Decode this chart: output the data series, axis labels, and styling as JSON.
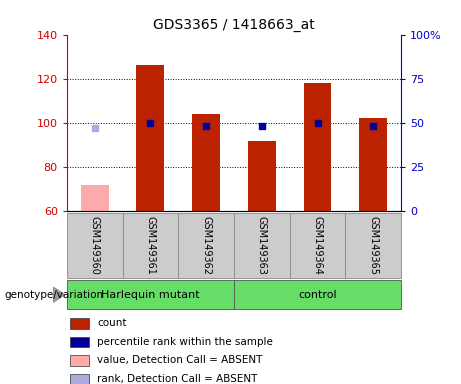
{
  "title": "GDS3365 / 1418663_at",
  "samples": [
    "GSM149360",
    "GSM149361",
    "GSM149362",
    "GSM149363",
    "GSM149364",
    "GSM149365"
  ],
  "count_values": [
    null,
    126,
    104,
    92,
    118,
    102
  ],
  "count_absent": [
    72,
    null,
    null,
    null,
    null,
    null
  ],
  "percentile_values": [
    null,
    50,
    48,
    48,
    50,
    48
  ],
  "percentile_absent": [
    47,
    null,
    null,
    null,
    null,
    null
  ],
  "ylim_left": [
    60,
    140
  ],
  "ylim_right": [
    0,
    100
  ],
  "yticks_left": [
    60,
    80,
    100,
    120,
    140
  ],
  "yticks_right": [
    0,
    25,
    50,
    75,
    100
  ],
  "ytick_labels_left": [
    "60",
    "80",
    "100",
    "120",
    "140"
  ],
  "ytick_labels_right": [
    "0",
    "25",
    "50",
    "75",
    "100%"
  ],
  "groups": [
    {
      "label": "Harlequin mutant",
      "color": "#66DD66"
    },
    {
      "label": "control",
      "color": "#66DD66"
    }
  ],
  "group_label": "genotype/variation",
  "bar_width": 0.5,
  "color_count": "#BB2200",
  "color_count_absent": "#FFAAAA",
  "color_percentile": "#000099",
  "color_percentile_absent": "#AAAADD",
  "legend_items": [
    {
      "label": "count",
      "color": "#BB2200"
    },
    {
      "label": "percentile rank within the sample",
      "color": "#000099"
    },
    {
      "label": "value, Detection Call = ABSENT",
      "color": "#FFAAAA"
    },
    {
      "label": "rank, Detection Call = ABSENT",
      "color": "#AAAADD"
    }
  ],
  "background_color": "#FFFFFF",
  "plot_bg": "#FFFFFF",
  "left_axis_color": "#CC0000",
  "right_axis_color": "#0000CC",
  "sample_box_color": "#CCCCCC",
  "sample_box_edge": "#888888"
}
